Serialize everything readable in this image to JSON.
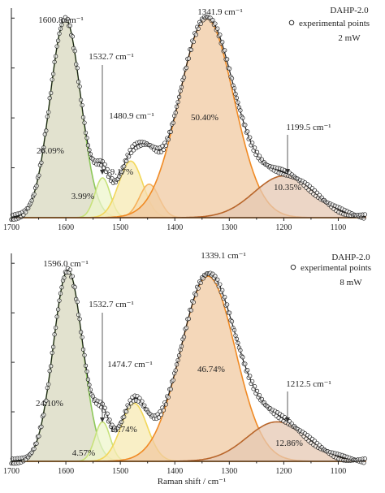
{
  "chart_data": [
    {
      "type": "line",
      "panel": "top",
      "sample": "DAHP-2.0",
      "legend": {
        "marker": "experimental points",
        "power": "2 mW",
        "placement": "top-right"
      },
      "x_reversed": true,
      "xlim": [
        1700,
        1050
      ],
      "ylim": [
        0,
        1.0
      ],
      "xticks": [
        "1700",
        "1600",
        "1500",
        "1400",
        "1300",
        "1200",
        "1100"
      ],
      "xlabel": "",
      "ylabel": "",
      "components": [
        {
          "center": 1600.8,
          "height": 0.95,
          "width": 28,
          "fill": "#d8d8bf",
          "stroke": "#8dc85a"
        },
        {
          "center": 1532.7,
          "height": 0.19,
          "width": 14,
          "fill": "#eef5cc",
          "stroke": "#c7e27a"
        },
        {
          "center": 1480.9,
          "height": 0.27,
          "width": 22,
          "fill": "#f7e9b3",
          "stroke": "#f2d75a"
        },
        {
          "center": 1447,
          "height": 0.16,
          "width": 18,
          "fill": "#f6dcb0",
          "stroke": "#f6b15a"
        },
        {
          "center": 1341.9,
          "height": 0.95,
          "width": 50,
          "fill": "#f0c9a2",
          "stroke": "#f08a24"
        },
        {
          "center": 1199.5,
          "height": 0.2,
          "width": 55,
          "fill": "#e6c8b3",
          "stroke": "#b8652a"
        }
      ],
      "peak_labels": [
        {
          "text": "1600.8 cm⁻¹",
          "x": 1600.8
        },
        {
          "text": "1532.7 cm⁻¹",
          "x": 1532.7
        },
        {
          "text": "1480.9 cm⁻¹",
          "x": 1480.9
        },
        {
          "text": "1341.9 cm⁻¹",
          "x": 1341.9
        },
        {
          "text": "1199.5 cm⁻¹",
          "x": 1199.5
        }
      ],
      "area_labels": [
        "26.09%",
        "3.99%",
        "9.17%",
        "50.40%",
        "10.35%"
      ]
    },
    {
      "type": "line",
      "panel": "bottom",
      "sample": "DAHP-2.0",
      "legend": {
        "marker": "experimental points",
        "power": "8 mW",
        "placement": "top-right"
      },
      "x_reversed": true,
      "xlim": [
        1700,
        1050
      ],
      "ylim": [
        0,
        1.0
      ],
      "xticks": [
        "1700",
        "1600",
        "1500",
        "1400",
        "1300",
        "1200",
        "1100"
      ],
      "xlabel": "Raman shift / cm⁻¹",
      "ylabel": "",
      "components": [
        {
          "center": 1596.0,
          "height": 0.92,
          "width": 27,
          "fill": "#d8d8bf",
          "stroke": "#8dc85a"
        },
        {
          "center": 1532.7,
          "height": 0.19,
          "width": 14,
          "fill": "#eef5cc",
          "stroke": "#c7e27a"
        },
        {
          "center": 1474.7,
          "height": 0.28,
          "width": 24,
          "fill": "#f7e9b3",
          "stroke": "#f2d75a"
        },
        {
          "center": 1339.1,
          "height": 0.89,
          "width": 50,
          "fill": "#f0c9a2",
          "stroke": "#f08a24"
        },
        {
          "center": 1212.5,
          "height": 0.19,
          "width": 55,
          "fill": "#e6c8b3",
          "stroke": "#b8652a"
        }
      ],
      "peak_labels": [
        {
          "text": "1596.0 cm⁻¹",
          "x": 1596.0
        },
        {
          "text": "1532.7 cm⁻¹",
          "x": 1532.7
        },
        {
          "text": "1474.7 cm⁻¹",
          "x": 1474.7
        },
        {
          "text": "1339.1 cm⁻¹",
          "x": 1339.1
        },
        {
          "text": "1212.5 cm⁻¹",
          "x": 1212.5
        }
      ],
      "area_labels": [
        "24.10%",
        "4.57%",
        "11.74%",
        "46.74%",
        "12.86%"
      ]
    }
  ]
}
